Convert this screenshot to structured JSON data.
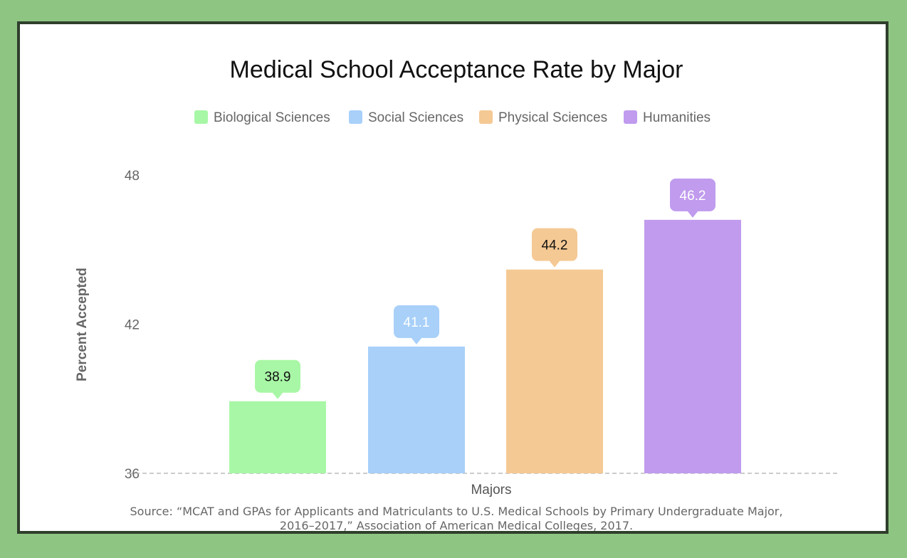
{
  "chart_data": {
    "type": "bar",
    "title": "Medical School Acceptance Rate by Major",
    "categories": [
      "Biological Sciences",
      "Social Sciences",
      "Physical Sciences",
      "Humanities"
    ],
    "values": [
      38.9,
      41.1,
      44.2,
      46.2
    ],
    "value_labels": [
      "38.9",
      "41.1",
      "44.2",
      "46.2"
    ],
    "colors": [
      "#a8f7a6",
      "#a8d0f9",
      "#f5c994",
      "#c09bee"
    ],
    "label_text_colors": [
      "#111111",
      "#ffffff",
      "#111111",
      "#ffffff"
    ],
    "xlabel": "Majors",
    "ylabel": "Percent Accepted",
    "ylim": [
      36,
      48
    ],
    "yticks": [
      36,
      42,
      48
    ],
    "ytick_labels": [
      "36",
      "42",
      "48"
    ],
    "grid": false,
    "legend_position": "top-center"
  },
  "source": {
    "line1": "Source:  “MCAT and GPAs for Applicants and Matriculants to U.S. Medical Schools by Primary Undergraduate Major,",
    "line2": "2016–2017,”  Association of American Medical Colleges, 2017."
  }
}
